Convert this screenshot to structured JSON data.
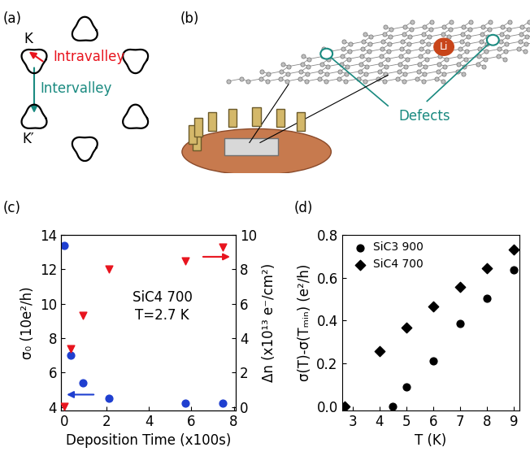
{
  "panel_a": {
    "panel_label": "(a)",
    "valley_1": "K",
    "valley_2": "K′",
    "intravalley": "Intravalley",
    "intervalley": "Intervalley"
  },
  "panel_b": {
    "panel_label": "(b)",
    "atom": "Li",
    "defects_label": "Defects"
  },
  "chart_data": [
    {
      "panel_label": "(c)",
      "type": "scatter",
      "x_label": "Deposition Time (x100s)",
      "y_label": "σ₀ (10e²/h)",
      "y2_label": "Δn (x10¹³ e⁻/cm²)",
      "annotations": [
        "SiC4 700",
        "T=2.7 K"
      ],
      "xlim": [
        -0.15,
        8.1
      ],
      "xticks": [
        0,
        2,
        4,
        6,
        8
      ],
      "ylim": [
        3.8,
        14
      ],
      "yticks": [
        4,
        6,
        8,
        10,
        12,
        14
      ],
      "y2lim": [
        -0.2,
        10
      ],
      "y2ticks": [
        0,
        2,
        4,
        6,
        8,
        10
      ],
      "series": [
        {
          "color": "#1f3fd0",
          "marker": "circle",
          "x": [
            0,
            0.3,
            0.9,
            2.1,
            5.7,
            7.5
          ],
          "values": [
            13.4,
            7.0,
            5.4,
            4.5,
            4.2,
            4.2
          ]
        },
        {
          "axis": "y2",
          "color": "#e8141e",
          "marker": "triangle_down",
          "x": [
            0,
            0.3,
            0.9,
            2.1,
            5.7,
            7.5
          ],
          "values": [
            0.05,
            3.4,
            5.3,
            8.0,
            8.5,
            9.3
          ]
        }
      ]
    },
    {
      "panel_label": "(d)",
      "type": "scatter",
      "x_label": "T (K)",
      "y_label": "σ(T)-σ(Tₘᵢₙ) (e²/h)",
      "xlim": [
        2.6,
        9.2
      ],
      "xticks": [
        3,
        4,
        5,
        6,
        7,
        8,
        9
      ],
      "ylim": [
        -0.02,
        0.8
      ],
      "yticks": [
        0.0,
        0.2,
        0.4,
        0.6,
        0.8
      ],
      "legend": "upper left",
      "series": [
        {
          "name": "SiC3 900",
          "color": "#000000",
          "marker": "circle",
          "x": [
            4.5,
            5,
            6,
            7,
            8,
            9
          ],
          "values": [
            0.0,
            0.09,
            0.21,
            0.385,
            0.505,
            0.635
          ]
        },
        {
          "name": "SiC4 700",
          "color": "#000000",
          "marker": "diamond",
          "x": [
            2.7,
            4,
            5,
            6,
            7,
            8,
            9
          ],
          "values": [
            0.0,
            0.255,
            0.365,
            0.465,
            0.555,
            0.645,
            0.73
          ]
        }
      ]
    }
  ]
}
